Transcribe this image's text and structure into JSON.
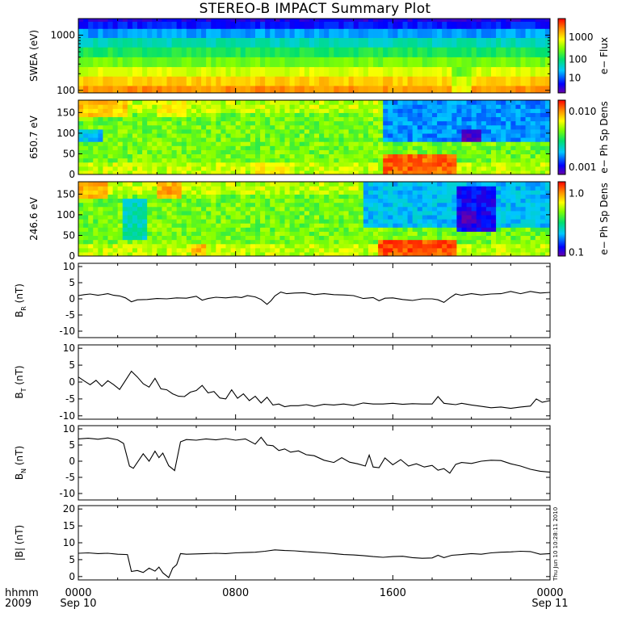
{
  "title": "STEREO-B IMPACT Summary Plot",
  "time_axis": {
    "labels": [
      {
        "hhmm": "0000",
        "date": "Sep 10"
      },
      {
        "hhmm": "0800",
        "date": ""
      },
      {
        "hhmm": "1600",
        "date": ""
      },
      {
        "hhmm": "0000",
        "date": "Sep 11"
      }
    ],
    "row_label_top": "hhmm",
    "row_label_bottom": "2009",
    "hours": [
      0,
      8,
      16,
      24
    ]
  },
  "timestamp": "Thu Jun 10 10:28:11 2010",
  "colors": {
    "line": "#000000",
    "background": "#ffffff"
  },
  "chart_data": [
    {
      "type": "heatmap",
      "panel": "swea",
      "ylabel": "SWEA (eV)",
      "yscale": "log",
      "ylim": [
        90,
        2000
      ],
      "y_ticks": [
        "100",
        "1000"
      ],
      "colorbar_label": "e− Flux",
      "colorbar_scale": "log",
      "colorbar_ticks": [
        "10",
        "100",
        "1000"
      ],
      "energies_eV": [
        100,
        150,
        220,
        330,
        500,
        750,
        1100,
        1600,
        2000
      ],
      "energy_levels": [
        0.85,
        0.78,
        0.68,
        0.58,
        0.48,
        0.38,
        0.26,
        0.14,
        0.08
      ]
    },
    {
      "type": "heatmap",
      "panel": "pad_650",
      "ylabel": "650.7 eV",
      "ylim": [
        0,
        180
      ],
      "y_ticks": [
        "0",
        "50",
        "100",
        "150"
      ],
      "colorbar_label": "e− Ph Sp Dens",
      "colorbar_scale": "log",
      "colorbar_ticks": [
        "0.001",
        "0.010"
      ],
      "features": [
        {
          "t0": 15.4,
          "t1": 19.2,
          "p0": 0,
          "p1": 45,
          "level": 0.9
        },
        {
          "t0": 15.4,
          "t1": 24,
          "p0": 85,
          "p1": 180,
          "level": 0.25
        },
        {
          "t0": 19.6,
          "t1": 20.4,
          "p0": 80,
          "p1": 110,
          "level": 0.05
        },
        {
          "t0": 0,
          "t1": 1.2,
          "p0": 80,
          "p1": 110,
          "level": 0.3
        },
        {
          "t0": 0,
          "t1": 2.5,
          "p0": 140,
          "p1": 180,
          "level": 0.78
        },
        {
          "t0": 4,
          "t1": 5.5,
          "p0": 140,
          "p1": 180,
          "level": 0.72
        },
        {
          "t0": 9,
          "t1": 11,
          "p0": 0,
          "p1": 30,
          "level": 0.72
        }
      ]
    },
    {
      "type": "heatmap",
      "panel": "pad_246",
      "ylabel": "246.6 eV",
      "ylim": [
        0,
        180
      ],
      "y_ticks": [
        "0",
        "50",
        "100",
        "150"
      ],
      "colorbar_label": "e− Ph Sp Dens",
      "colorbar_scale": "log",
      "colorbar_ticks": [
        "0.1",
        "1.0"
      ],
      "features": [
        {
          "t0": 15.2,
          "t1": 19.2,
          "p0": 0,
          "p1": 40,
          "level": 0.92
        },
        {
          "t0": 14.6,
          "t1": 24,
          "p0": 70,
          "p1": 180,
          "level": 0.3
        },
        {
          "t0": 19.2,
          "t1": 21.2,
          "p0": 60,
          "p1": 170,
          "level": 0.12
        },
        {
          "t0": 19.6,
          "t1": 20.2,
          "p0": 80,
          "p1": 110,
          "level": 0.03
        },
        {
          "t0": 2.2,
          "t1": 3.4,
          "p0": 40,
          "p1": 140,
          "level": 0.38
        },
        {
          "t0": 3.9,
          "t1": 5.3,
          "p0": 140,
          "p1": 180,
          "level": 0.82
        },
        {
          "t0": 0,
          "t1": 1.6,
          "p0": 140,
          "p1": 180,
          "level": 0.8
        },
        {
          "t0": 5.8,
          "t1": 6.6,
          "p0": 0,
          "p1": 30,
          "level": 0.8
        }
      ]
    },
    {
      "type": "line",
      "panel": "br",
      "ylabel_main": "B",
      "ylabel_sub": "R",
      "ylabel_unit": " (nT)",
      "ylim": [
        -12,
        11
      ],
      "y_ticks": [
        -10,
        -5,
        0,
        5,
        10
      ],
      "x": [
        0,
        0.3,
        0.6,
        1,
        1.5,
        1.8,
        2.1,
        2.4,
        2.7,
        3,
        3.5,
        4,
        4.5,
        5,
        5.5,
        6,
        6.3,
        6.6,
        7,
        7.5,
        8,
        8.3,
        8.6,
        9,
        9.3,
        9.6,
        9.8,
        10,
        10.3,
        10.6,
        11,
        11.5,
        12,
        12.5,
        13,
        13.5,
        14,
        14.5,
        15,
        15.3,
        15.6,
        16,
        16.5,
        17,
        17.5,
        18,
        18.3,
        18.6,
        18.9,
        19.2,
        19.5,
        20,
        20.5,
        21,
        21.5,
        22,
        22.5,
        23,
        23.5,
        24
      ],
      "y": [
        1.0,
        1.3,
        1.5,
        1.1,
        1.6,
        1.1,
        0.9,
        0.3,
        -0.9,
        -0.3,
        -0.2,
        0.1,
        0.0,
        0.3,
        0.2,
        0.8,
        -0.4,
        0.1,
        0.5,
        0.3,
        0.6,
        0.4,
        1.0,
        0.6,
        -0.2,
        -1.7,
        -0.6,
        0.9,
        2.1,
        1.6,
        1.8,
        1.9,
        1.3,
        1.6,
        1.3,
        1.2,
        1.0,
        0.1,
        0.4,
        -0.6,
        0.2,
        0.3,
        -0.2,
        -0.5,
        0.0,
        0.0,
        -0.3,
        -1.1,
        0.3,
        1.5,
        1.1,
        1.6,
        1.2,
        1.5,
        1.6,
        2.3,
        1.6,
        2.3,
        1.8,
        2.0
      ]
    },
    {
      "type": "line",
      "panel": "bt",
      "ylabel_main": "B",
      "ylabel_sub": "T",
      "ylabel_unit": " (nT)",
      "ylim": [
        -11,
        11
      ],
      "y_ticks": [
        -10,
        -5,
        0,
        5,
        10
      ],
      "x": [
        0,
        0.3,
        0.6,
        0.9,
        1.2,
        1.5,
        1.8,
        2.1,
        2.4,
        2.7,
        3,
        3.3,
        3.6,
        3.9,
        4.2,
        4.5,
        4.8,
        5.1,
        5.4,
        5.7,
        6,
        6.3,
        6.6,
        6.9,
        7.2,
        7.5,
        7.8,
        8.1,
        8.4,
        8.7,
        9,
        9.3,
        9.6,
        9.9,
        10.2,
        10.5,
        10.8,
        11.2,
        11.6,
        12,
        12.5,
        13,
        13.5,
        14,
        14.5,
        15,
        15.5,
        16,
        16.5,
        17,
        17.5,
        18,
        18.3,
        18.6,
        18.9,
        19.2,
        19.5,
        20,
        20.5,
        21,
        21.5,
        22,
        22.5,
        23,
        23.3,
        23.6,
        24
      ],
      "y": [
        1.5,
        0.3,
        -0.8,
        0.5,
        -1.3,
        0.4,
        -0.8,
        -2.2,
        0.5,
        3.2,
        1.5,
        -0.5,
        -1.5,
        1.1,
        -2.0,
        -2.3,
        -3.5,
        -4.2,
        -4.3,
        -3.0,
        -2.5,
        -1.0,
        -3.2,
        -2.8,
        -4.7,
        -5.0,
        -2.3,
        -4.8,
        -3.5,
        -5.5,
        -4.2,
        -6.2,
        -4.5,
        -6.8,
        -6.5,
        -7.3,
        -7.0,
        -7.0,
        -6.7,
        -7.2,
        -6.6,
        -6.8,
        -6.5,
        -6.9,
        -6.2,
        -6.5,
        -6.5,
        -6.3,
        -6.6,
        -6.4,
        -6.5,
        -6.5,
        -4.3,
        -6.3,
        -6.5,
        -6.7,
        -6.3,
        -6.8,
        -7.2,
        -7.6,
        -7.4,
        -7.8,
        -7.4,
        -7.1,
        -5.0,
        -6.0,
        -5.5
      ]
    },
    {
      "type": "line",
      "panel": "bn",
      "ylabel_main": "B",
      "ylabel_sub": "N",
      "ylabel_unit": " (nT)",
      "ylim": [
        -12,
        11
      ],
      "y_ticks": [
        -10,
        -5,
        0,
        5,
        10
      ],
      "x": [
        0,
        0.5,
        1,
        1.5,
        2,
        2.3,
        2.6,
        2.8,
        3,
        3.3,
        3.6,
        3.9,
        4.1,
        4.3,
        4.6,
        4.9,
        5.2,
        5.5,
        6,
        6.5,
        7,
        7.5,
        8,
        8.5,
        9,
        9.3,
        9.6,
        9.9,
        10.2,
        10.5,
        10.8,
        11.2,
        11.6,
        12,
        12.5,
        13,
        13.4,
        13.8,
        14.2,
        14.6,
        14.8,
        15,
        15.3,
        15.6,
        16,
        16.4,
        16.8,
        17.2,
        17.6,
        18,
        18.3,
        18.6,
        18.9,
        19.2,
        19.5,
        20,
        20.5,
        21,
        21.5,
        22,
        22.5,
        23,
        23.5,
        24
      ],
      "y": [
        6.9,
        7.1,
        6.8,
        7.2,
        6.6,
        5.5,
        -1.5,
        -2.2,
        -0.4,
        2.3,
        0.0,
        3.1,
        1.1,
        2.5,
        -1.4,
        -2.9,
        6.0,
        6.7,
        6.5,
        6.9,
        6.6,
        7.0,
        6.5,
        6.9,
        5.3,
        7.4,
        5.0,
        4.8,
        3.3,
        3.8,
        2.8,
        3.2,
        2.0,
        1.7,
        0.3,
        -0.4,
        1.1,
        -0.3,
        -0.8,
        -1.5,
        1.9,
        -1.8,
        -2.0,
        1.0,
        -1.1,
        0.5,
        -1.5,
        -0.8,
        -1.8,
        -1.3,
        -2.8,
        -2.3,
        -3.7,
        -1.0,
        -0.4,
        -0.7,
        0.0,
        0.3,
        0.2,
        -0.8,
        -1.5,
        -2.5,
        -3.1,
        -3.4
      ]
    },
    {
      "type": "line",
      "panel": "bmag",
      "ylabel_main": "|B|",
      "ylabel_sub": "",
      "ylabel_unit": " (nT)",
      "ylim": [
        -1,
        21
      ],
      "y_ticks": [
        0,
        5,
        10,
        15,
        20
      ],
      "x": [
        0,
        0.5,
        1,
        1.5,
        2,
        2.5,
        2.7,
        3,
        3.3,
        3.6,
        3.9,
        4.1,
        4.3,
        4.6,
        4.8,
        5.0,
        5.2,
        5.5,
        6,
        6.5,
        7,
        7.5,
        8,
        8.5,
        9,
        9.5,
        10,
        10.5,
        11,
        11.5,
        12,
        12.5,
        13,
        13.5,
        14,
        14.5,
        15,
        15.5,
        16,
        16.5,
        17,
        17.5,
        18,
        18.3,
        18.6,
        19,
        19.5,
        20,
        20.5,
        21,
        21.5,
        22,
        22.5,
        23,
        23.5,
        24
      ],
      "y": [
        6.9,
        7.0,
        6.8,
        6.9,
        6.6,
        6.5,
        1.5,
        1.8,
        1.2,
        2.5,
        1.6,
        2.8,
        1.1,
        -0.3,
        2.5,
        3.5,
        6.8,
        6.6,
        6.7,
        6.8,
        6.9,
        6.8,
        7.0,
        7.1,
        7.2,
        7.5,
        7.9,
        7.7,
        7.6,
        7.4,
        7.2,
        7.0,
        6.8,
        6.5,
        6.4,
        6.2,
        5.9,
        5.7,
        5.9,
        6.0,
        5.6,
        5.4,
        5.5,
        6.3,
        5.6,
        6.3,
        6.5,
        6.8,
        6.6,
        7.0,
        7.2,
        7.3,
        7.5,
        7.4,
        6.6,
        6.8
      ]
    }
  ]
}
